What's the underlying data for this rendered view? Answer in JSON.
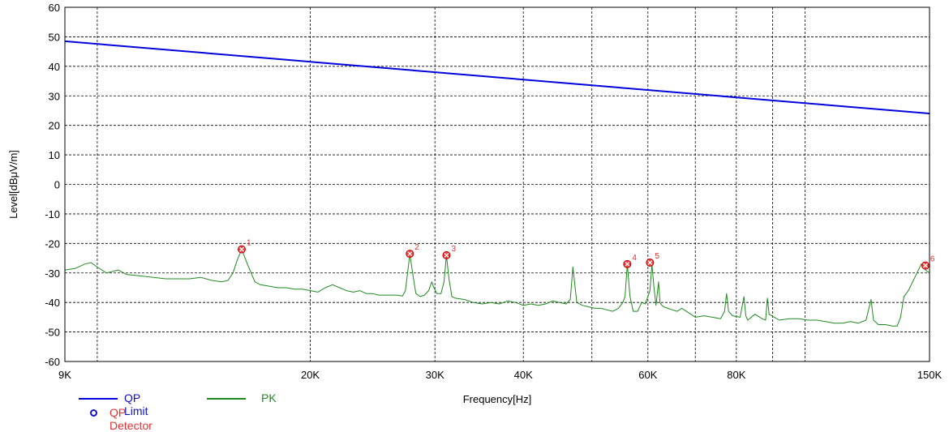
{
  "chart_data": {
    "type": "line",
    "xlabel": "Frequency[Hz]",
    "ylabel": "Level[dBμV/m]",
    "x_scale": "log",
    "xlim": [
      9000,
      150000
    ],
    "ylim": [
      -60,
      60
    ],
    "grid": true,
    "x_ticks": [
      {
        "value": 9000,
        "label": "9K"
      },
      {
        "value": 20000,
        "label": "20K"
      },
      {
        "value": 30000,
        "label": "30K"
      },
      {
        "value": 40000,
        "label": "40K"
      },
      {
        "value": 60000,
        "label": "60K"
      },
      {
        "value": 80000,
        "label": "80K"
      },
      {
        "value": 150000,
        "label": "150K"
      }
    ],
    "x_grid": [
      10000,
      20000,
      30000,
      40000,
      50000,
      60000,
      70000,
      80000,
      90000,
      100000
    ],
    "y_ticks": [
      60,
      50,
      40,
      30,
      20,
      10,
      0,
      -10,
      -20,
      -30,
      -40,
      -50,
      -60
    ],
    "series": [
      {
        "name": "QP Limit",
        "color": "#0000dd",
        "x": [
          9000,
          150000
        ],
        "y": [
          48.5,
          24
        ]
      },
      {
        "name": "PK",
        "color": "#1e8a1e",
        "x": [
          9000,
          9300,
          9600,
          9800,
          10000,
          10300,
          10700,
          11000,
          11500,
          12000,
          12500,
          13000,
          13500,
          14000,
          14500,
          15000,
          15300,
          15550,
          15750,
          16000,
          16300,
          16700,
          17000,
          17500,
          18000,
          18500,
          19000,
          19500,
          20000,
          20500,
          21000,
          21500,
          22000,
          22500,
          23000,
          23500,
          24000,
          24500,
          25000,
          25500,
          26000,
          26500,
          27000,
          27250,
          27450,
          27650,
          27900,
          28200,
          28600,
          29000,
          29400,
          29700,
          29900,
          30200,
          30600,
          30900,
          31150,
          31400,
          31700,
          32000,
          33000,
          34000,
          35000,
          36000,
          37000,
          38000,
          39000,
          40000,
          41000,
          42000,
          43000,
          44000,
          45000,
          46000,
          46600,
          47000,
          47600,
          48500,
          49500,
          50500,
          51500,
          52500,
          53500,
          54500,
          55300,
          55700,
          56100,
          56600,
          57200,
          58000,
          58800,
          59500,
          60000,
          60400,
          60800,
          61200,
          61600,
          62100,
          62400,
          62800,
          63200,
          64000,
          65000,
          66000,
          67000,
          68000,
          69000,
          70000,
          72000,
          74000,
          76000,
          77000,
          77500,
          78000,
          79000,
          81000,
          82000,
          82500,
          83000,
          85000,
          87000,
          88000,
          88500,
          89000,
          92000,
          95000,
          98000,
          101000,
          104000,
          107000,
          110000,
          113000,
          116000,
          119000,
          122000,
          124000,
          125000,
          127000,
          130000,
          133000,
          135000,
          136500,
          138000,
          140000,
          142000,
          144000,
          146000,
          148000,
          150000
        ],
        "y": [
          -29,
          -28.5,
          -27,
          -26.5,
          -28,
          -30,
          -29,
          -30.5,
          -31,
          -31.5,
          -32,
          -32,
          -32,
          -31.5,
          -32.5,
          -33,
          -32.5,
          -30,
          -26,
          -22,
          -27,
          -33,
          -34,
          -34.5,
          -35,
          -35,
          -35.5,
          -35.5,
          -36,
          -36.5,
          -35,
          -34,
          -35,
          -36,
          -36.5,
          -36,
          -37,
          -37,
          -37.5,
          -37.5,
          -37.5,
          -37.5,
          -37.8,
          -36,
          -30,
          -23.5,
          -30,
          -37,
          -38,
          -37.5,
          -36,
          -33,
          -35,
          -37,
          -37,
          -33,
          -24,
          -32,
          -38,
          -38.5,
          -39,
          -40,
          -40.5,
          -40,
          -40.5,
          -39.5,
          -40,
          -41,
          -40.5,
          -41,
          -40.5,
          -39.5,
          -40,
          -40.5,
          -39,
          -28,
          -40,
          -41,
          -41.5,
          -42,
          -42,
          -42.5,
          -43,
          -42,
          -40,
          -38,
          -27,
          -38,
          -43,
          -43,
          -40,
          -40.5,
          -38,
          -36,
          -27,
          -35,
          -41,
          -33,
          -40,
          -41,
          -41.5,
          -42,
          -42.5,
          -43,
          -42,
          -43,
          -44,
          -45,
          -44.5,
          -45,
          -45.5,
          -43,
          -37,
          -43,
          -44.5,
          -45,
          -38,
          -44.5,
          -46,
          -44,
          -45.5,
          -46,
          -38.5,
          -44,
          -46,
          -45.5,
          -45.5,
          -46,
          -46,
          -46.5,
          -47,
          -47,
          -46.5,
          -47,
          -46,
          -39,
          -46,
          -47.5,
          -47.5,
          -48,
          -48,
          -45,
          -38,
          -36,
          -33,
          -30,
          -27,
          -29,
          -30
        ]
      }
    ],
    "markers": [
      {
        "label": "1",
        "x": 16000,
        "y": -22
      },
      {
        "label": "2",
        "x": 27650,
        "y": -23.5
      },
      {
        "label": "3",
        "x": 31150,
        "y": -24
      },
      {
        "label": "4",
        "x": 56100,
        "y": -27
      },
      {
        "label": "5",
        "x": 60400,
        "y": -26.5
      },
      {
        "label": "6",
        "x": 148000,
        "y": -27.5
      }
    ]
  },
  "legend": {
    "qp_limit": {
      "label": "QP Limit",
      "color": "#0000dd",
      "text_color": "#1010cc"
    },
    "pk": {
      "label": "PK",
      "color": "#1e8a1e",
      "text_color": "#1e8a1e"
    },
    "qp_detector": {
      "label": "QP Detector",
      "color": "#1010cc",
      "text_color": "#e53030"
    }
  }
}
